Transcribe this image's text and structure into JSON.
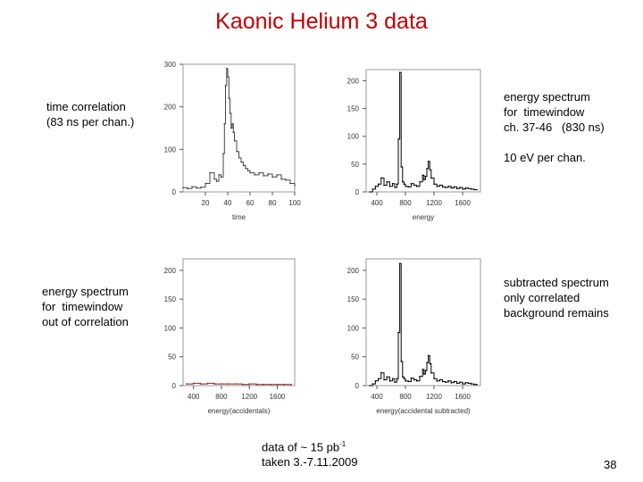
{
  "title": "Kaonic Helium 3 data",
  "notes": {
    "time_correlation": "time correlation\n(83 ns per chan.)",
    "energy_window": "energy spectrum\nfor  timewindow\nch. 37-46   (830 ns)",
    "ev_per_chan": "10 eV per chan.",
    "out_of_correlation": "energy spectrum\nfor  timewindow\nout of correlation",
    "subtracted": "subtracted spectrum\nonly correlated\nbackground remains"
  },
  "footnote": {
    "line1_prefix": "data of ~ 15 pb",
    "line1_sup": "-1",
    "line2": "taken 3.-7.11.2009"
  },
  "page_number": "38",
  "chart_data": [
    {
      "type": "line",
      "xlabel": "time",
      "ylabel": "",
      "xlim": [
        0,
        100
      ],
      "ylim": [
        0,
        300
      ],
      "xticks": [
        20,
        40,
        60,
        80,
        100
      ],
      "yticks": [
        0,
        100,
        200,
        300
      ],
      "series": [
        {
          "x": [
            0,
            4,
            8,
            12,
            16,
            20,
            24,
            28,
            30,
            32,
            34,
            36,
            37,
            38,
            39,
            40,
            41,
            42,
            43,
            44,
            45,
            46,
            48,
            50,
            52,
            54,
            56,
            58,
            60,
            64,
            68,
            72,
            76,
            80,
            84,
            88,
            92,
            96,
            100
          ],
          "values": [
            10,
            8,
            12,
            9,
            11,
            20,
            45,
            30,
            25,
            40,
            35,
            90,
            160,
            250,
            290,
            270,
            220,
            185,
            150,
            160,
            140,
            120,
            95,
            80,
            70,
            62,
            55,
            50,
            45,
            40,
            45,
            38,
            42,
            35,
            40,
            30,
            28,
            20,
            15
          ]
        }
      ]
    },
    {
      "type": "line",
      "xlabel": "energy",
      "ylabel": "",
      "xlim": [
        250,
        1850
      ],
      "ylim": [
        0,
        220
      ],
      "xticks": [
        400,
        800,
        1200,
        1600
      ],
      "yticks": [
        0,
        50,
        100,
        150,
        200
      ],
      "series": [
        {
          "x": [
            300,
            340,
            380,
            420,
            460,
            500,
            540,
            580,
            620,
            650,
            680,
            700,
            720,
            740,
            760,
            780,
            800,
            840,
            880,
            920,
            960,
            1000,
            1040,
            1060,
            1080,
            1100,
            1120,
            1140,
            1160,
            1200,
            1240,
            1280,
            1320,
            1360,
            1400,
            1440,
            1480,
            1520,
            1560,
            1600,
            1640,
            1680,
            1720,
            1760,
            1800
          ],
          "values": [
            0,
            5,
            10,
            14,
            25,
            12,
            18,
            10,
            15,
            8,
            14,
            95,
            215,
            45,
            18,
            14,
            10,
            9,
            15,
            12,
            10,
            18,
            30,
            22,
            28,
            42,
            55,
            40,
            25,
            14,
            10,
            12,
            9,
            8,
            10,
            7,
            9,
            6,
            8,
            5,
            7,
            6,
            5,
            4,
            4
          ]
        }
      ]
    },
    {
      "type": "line",
      "xlabel": "energy(accidentals)",
      "ylabel": "",
      "xlim": [
        250,
        1850
      ],
      "ylim": [
        0,
        220
      ],
      "xticks": [
        400,
        800,
        1200,
        1600
      ],
      "yticks": [
        0,
        50,
        100,
        150,
        200
      ],
      "series": [
        {
          "x": [
            300,
            400,
            500,
            600,
            700,
            800,
            900,
            1000,
            1100,
            1200,
            1300,
            1400,
            1500,
            1600,
            1700,
            1800
          ],
          "values": [
            3,
            4,
            3,
            4,
            3,
            3,
            3,
            3,
            2,
            3,
            2,
            2,
            2,
            2,
            2,
            2
          ]
        }
      ]
    },
    {
      "type": "line",
      "xlabel": "energy(accidental subtracted)",
      "ylabel": "",
      "xlim": [
        250,
        1850
      ],
      "ylim": [
        0,
        220
      ],
      "xticks": [
        400,
        800,
        1200,
        1600
      ],
      "yticks": [
        0,
        50,
        100,
        150,
        200
      ],
      "series": [
        {
          "x": [
            300,
            340,
            380,
            420,
            460,
            500,
            540,
            580,
            620,
            650,
            680,
            700,
            720,
            740,
            760,
            780,
            800,
            840,
            880,
            920,
            960,
            1000,
            1040,
            1060,
            1080,
            1100,
            1120,
            1140,
            1160,
            1200,
            1240,
            1280,
            1320,
            1360,
            1400,
            1440,
            1480,
            1520,
            1560,
            1600,
            1640,
            1680,
            1720,
            1760,
            1800
          ],
          "values": [
            0,
            3,
            8,
            12,
            22,
            10,
            15,
            8,
            12,
            6,
            12,
            92,
            212,
            42,
            15,
            12,
            8,
            7,
            13,
            10,
            8,
            16,
            28,
            20,
            26,
            40,
            52,
            38,
            22,
            12,
            8,
            10,
            7,
            6,
            8,
            5,
            7,
            4,
            6,
            3,
            5,
            4,
            3,
            2,
            2
          ]
        }
      ]
    }
  ]
}
